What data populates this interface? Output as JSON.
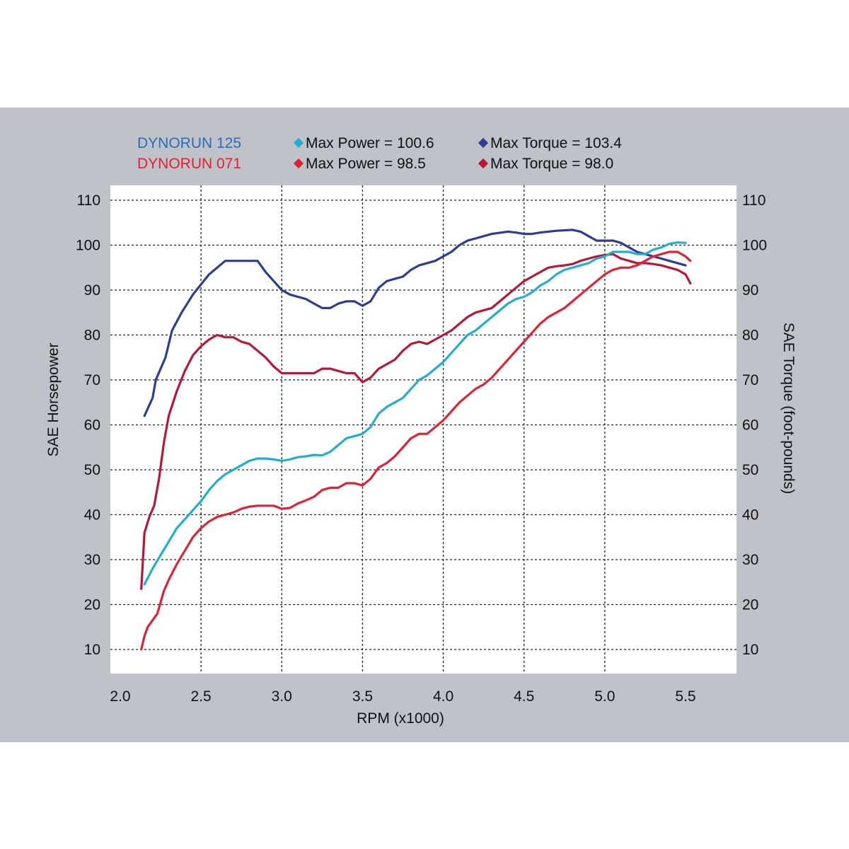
{
  "legend": {
    "runs": [
      {
        "name": "DYNORUN 125",
        "color": "#2a6db5",
        "power_label": "Max Power = 100.6",
        "torque_label": "Max Torque = 103.4",
        "power_color": "#22aed0",
        "torque_color": "#2c3d96"
      },
      {
        "name": "DYNORUN 071",
        "color": "#e32030",
        "power_label": "Max Power = 98.5",
        "torque_label": "Max Torque = 98.0",
        "power_color": "#e02236",
        "torque_color": "#b81836"
      }
    ]
  },
  "chart_data": {
    "type": "line",
    "xlabel": "RPM (x1000)",
    "ylabel_left": "SAE Horsepower",
    "ylabel_right": "SAE Torque (foot-pounds)",
    "xlim": [
      2.0,
      5.5
    ],
    "ylim": [
      10,
      110
    ],
    "x_ticks": [
      "2.0",
      "2.5",
      "3.0",
      "3.5",
      "4.0",
      "4.5",
      "5.0",
      "5.5"
    ],
    "y_ticks": [
      "10",
      "20",
      "30",
      "40",
      "50",
      "60",
      "70",
      "80",
      "90",
      "100",
      "110"
    ],
    "grid": true,
    "series": [
      {
        "name": "DYNORUN 125 Max Torque",
        "color": "#2c3d96",
        "points": [
          [
            2.15,
            62
          ],
          [
            2.2,
            66
          ],
          [
            2.22,
            70
          ],
          [
            2.28,
            75
          ],
          [
            2.32,
            81
          ],
          [
            2.38,
            85
          ],
          [
            2.45,
            89
          ],
          [
            2.55,
            93.5
          ],
          [
            2.65,
            96.5
          ],
          [
            2.75,
            96.5
          ],
          [
            2.85,
            96.5
          ],
          [
            2.9,
            94
          ],
          [
            2.95,
            92
          ],
          [
            3.0,
            90
          ],
          [
            3.05,
            89
          ],
          [
            3.1,
            88.5
          ],
          [
            3.15,
            88
          ],
          [
            3.2,
            87
          ],
          [
            3.25,
            86
          ],
          [
            3.3,
            86
          ],
          [
            3.35,
            87
          ],
          [
            3.4,
            87.5
          ],
          [
            3.45,
            87.5
          ],
          [
            3.5,
            86.5
          ],
          [
            3.55,
            87.5
          ],
          [
            3.6,
            90.5
          ],
          [
            3.65,
            92
          ],
          [
            3.7,
            92.5
          ],
          [
            3.75,
            93
          ],
          [
            3.8,
            94.5
          ],
          [
            3.85,
            95.5
          ],
          [
            3.9,
            96
          ],
          [
            3.95,
            96.5
          ],
          [
            4.0,
            97.5
          ],
          [
            4.05,
            98.5
          ],
          [
            4.1,
            100
          ],
          [
            4.15,
            101
          ],
          [
            4.2,
            101.5
          ],
          [
            4.3,
            102.5
          ],
          [
            4.4,
            103
          ],
          [
            4.45,
            102.8
          ],
          [
            4.5,
            102.5
          ],
          [
            4.55,
            102.5
          ],
          [
            4.6,
            102.8
          ],
          [
            4.7,
            103.2
          ],
          [
            4.8,
            103.4
          ],
          [
            4.85,
            103
          ],
          [
            4.9,
            102
          ],
          [
            4.95,
            101
          ],
          [
            5.0,
            101
          ],
          [
            5.05,
            101
          ],
          [
            5.1,
            100.5
          ],
          [
            5.15,
            99.5
          ],
          [
            5.2,
            98.5
          ],
          [
            5.25,
            98
          ],
          [
            5.3,
            97.5
          ],
          [
            5.35,
            97
          ],
          [
            5.4,
            96.5
          ],
          [
            5.45,
            96
          ],
          [
            5.5,
            95.5
          ]
        ]
      },
      {
        "name": "DYNORUN 071 Max Torque",
        "color": "#b81836",
        "points": [
          [
            2.13,
            23.5
          ],
          [
            2.15,
            36
          ],
          [
            2.18,
            39.5
          ],
          [
            2.21,
            42
          ],
          [
            2.24,
            48
          ],
          [
            2.27,
            56
          ],
          [
            2.3,
            62
          ],
          [
            2.35,
            67.5
          ],
          [
            2.4,
            72
          ],
          [
            2.45,
            75.5
          ],
          [
            2.5,
            77.5
          ],
          [
            2.55,
            79
          ],
          [
            2.6,
            80
          ],
          [
            2.65,
            79.5
          ],
          [
            2.7,
            79.5
          ],
          [
            2.75,
            78.5
          ],
          [
            2.8,
            78
          ],
          [
            2.85,
            76.5
          ],
          [
            2.9,
            75
          ],
          [
            2.95,
            73
          ],
          [
            3.0,
            71.5
          ],
          [
            3.05,
            71.5
          ],
          [
            3.1,
            71.5
          ],
          [
            3.15,
            71.5
          ],
          [
            3.2,
            71.5
          ],
          [
            3.25,
            72.5
          ],
          [
            3.3,
            72.5
          ],
          [
            3.35,
            72
          ],
          [
            3.4,
            71.5
          ],
          [
            3.45,
            71.5
          ],
          [
            3.5,
            69.5
          ],
          [
            3.55,
            70.5
          ],
          [
            3.6,
            72.5
          ],
          [
            3.65,
            73.5
          ],
          [
            3.7,
            74.5
          ],
          [
            3.75,
            76.5
          ],
          [
            3.8,
            78
          ],
          [
            3.85,
            78.5
          ],
          [
            3.9,
            78
          ],
          [
            3.95,
            79
          ],
          [
            4.0,
            80
          ],
          [
            4.05,
            81
          ],
          [
            4.1,
            82.5
          ],
          [
            4.15,
            84
          ],
          [
            4.2,
            85
          ],
          [
            4.25,
            85.5
          ],
          [
            4.3,
            86
          ],
          [
            4.35,
            87.5
          ],
          [
            4.4,
            89
          ],
          [
            4.45,
            90.5
          ],
          [
            4.5,
            92
          ],
          [
            4.55,
            93
          ],
          [
            4.6,
            94
          ],
          [
            4.65,
            95
          ],
          [
            4.7,
            95.3
          ],
          [
            4.75,
            95.5
          ],
          [
            4.8,
            95.8
          ],
          [
            4.85,
            96.5
          ],
          [
            4.9,
            97
          ],
          [
            4.95,
            97.5
          ],
          [
            5.0,
            97.8
          ],
          [
            5.05,
            98
          ],
          [
            5.1,
            97
          ],
          [
            5.15,
            96.5
          ],
          [
            5.2,
            96
          ],
          [
            5.25,
            96
          ],
          [
            5.3,
            95.8
          ],
          [
            5.35,
            95.5
          ],
          [
            5.4,
            95
          ],
          [
            5.45,
            94.5
          ],
          [
            5.5,
            93.5
          ],
          [
            5.53,
            91.5
          ]
        ]
      },
      {
        "name": "DYNORUN 125 Max Power",
        "color": "#22aed0",
        "points": [
          [
            2.15,
            24.5
          ],
          [
            2.2,
            28
          ],
          [
            2.25,
            31
          ],
          [
            2.3,
            34
          ],
          [
            2.35,
            37
          ],
          [
            2.4,
            39
          ],
          [
            2.45,
            41
          ],
          [
            2.5,
            43
          ],
          [
            2.55,
            45.5
          ],
          [
            2.6,
            47.5
          ],
          [
            2.65,
            49
          ],
          [
            2.7,
            50
          ],
          [
            2.75,
            51
          ],
          [
            2.8,
            52
          ],
          [
            2.85,
            52.5
          ],
          [
            2.9,
            52.5
          ],
          [
            2.95,
            52.3
          ],
          [
            3.0,
            52
          ],
          [
            3.05,
            52.3
          ],
          [
            3.1,
            52.8
          ],
          [
            3.15,
            53
          ],
          [
            3.2,
            53.3
          ],
          [
            3.25,
            53.2
          ],
          [
            3.3,
            54
          ],
          [
            3.35,
            55.5
          ],
          [
            3.4,
            57
          ],
          [
            3.45,
            57.5
          ],
          [
            3.5,
            58
          ],
          [
            3.55,
            59.5
          ],
          [
            3.6,
            62.5
          ],
          [
            3.65,
            64
          ],
          [
            3.7,
            65
          ],
          [
            3.75,
            66
          ],
          [
            3.8,
            68
          ],
          [
            3.85,
            70
          ],
          [
            3.9,
            71
          ],
          [
            3.95,
            72.5
          ],
          [
            4.0,
            74
          ],
          [
            4.05,
            76
          ],
          [
            4.1,
            78
          ],
          [
            4.15,
            80
          ],
          [
            4.2,
            81
          ],
          [
            4.25,
            82.5
          ],
          [
            4.3,
            84
          ],
          [
            4.35,
            85.5
          ],
          [
            4.4,
            87
          ],
          [
            4.45,
            88
          ],
          [
            4.5,
            88.5
          ],
          [
            4.55,
            89.5
          ],
          [
            4.6,
            91
          ],
          [
            4.65,
            92
          ],
          [
            4.7,
            93.5
          ],
          [
            4.75,
            94.5
          ],
          [
            4.8,
            95
          ],
          [
            4.85,
            95.5
          ],
          [
            4.9,
            96
          ],
          [
            4.95,
            97
          ],
          [
            5.0,
            97.5
          ],
          [
            5.05,
            98.5
          ],
          [
            5.1,
            98.5
          ],
          [
            5.15,
            98.5
          ],
          [
            5.2,
            98
          ],
          [
            5.25,
            98
          ],
          [
            5.3,
            99
          ],
          [
            5.35,
            99.5
          ],
          [
            5.4,
            100.3
          ],
          [
            5.45,
            100.6
          ],
          [
            5.5,
            100.5
          ]
        ]
      },
      {
        "name": "DYNORUN 071 Max Power",
        "color": "#e02236",
        "points": [
          [
            2.13,
            10
          ],
          [
            2.15,
            13
          ],
          [
            2.17,
            15
          ],
          [
            2.2,
            16.5
          ],
          [
            2.23,
            18
          ],
          [
            2.27,
            23
          ],
          [
            2.3,
            25.5
          ],
          [
            2.35,
            29
          ],
          [
            2.4,
            32
          ],
          [
            2.45,
            35
          ],
          [
            2.5,
            37
          ],
          [
            2.55,
            38.5
          ],
          [
            2.6,
            39.5
          ],
          [
            2.65,
            40
          ],
          [
            2.7,
            40.5
          ],
          [
            2.75,
            41.3
          ],
          [
            2.8,
            41.8
          ],
          [
            2.85,
            42
          ],
          [
            2.9,
            42
          ],
          [
            2.95,
            42
          ],
          [
            3.0,
            41.3
          ],
          [
            3.05,
            41.5
          ],
          [
            3.1,
            42.5
          ],
          [
            3.15,
            43.2
          ],
          [
            3.2,
            44
          ],
          [
            3.25,
            45.5
          ],
          [
            3.3,
            46
          ],
          [
            3.35,
            46
          ],
          [
            3.4,
            47
          ],
          [
            3.45,
            47
          ],
          [
            3.5,
            46.5
          ],
          [
            3.55,
            48
          ],
          [
            3.6,
            50.5
          ],
          [
            3.65,
            51.5
          ],
          [
            3.7,
            53
          ],
          [
            3.75,
            55
          ],
          [
            3.8,
            57
          ],
          [
            3.85,
            58
          ],
          [
            3.9,
            58
          ],
          [
            3.95,
            59.5
          ],
          [
            4.0,
            61
          ],
          [
            4.05,
            63
          ],
          [
            4.1,
            65
          ],
          [
            4.15,
            66.5
          ],
          [
            4.2,
            68
          ],
          [
            4.25,
            69
          ],
          [
            4.3,
            70.5
          ],
          [
            4.35,
            72.5
          ],
          [
            4.4,
            74.5
          ],
          [
            4.45,
            76.5
          ],
          [
            4.5,
            78.5
          ],
          [
            4.55,
            80.5
          ],
          [
            4.6,
            82.5
          ],
          [
            4.65,
            84
          ],
          [
            4.7,
            85
          ],
          [
            4.75,
            86
          ],
          [
            4.8,
            87.5
          ],
          [
            4.85,
            89
          ],
          [
            4.9,
            90.5
          ],
          [
            4.95,
            92
          ],
          [
            5.0,
            93.5
          ],
          [
            5.05,
            94.5
          ],
          [
            5.1,
            95
          ],
          [
            5.15,
            95
          ],
          [
            5.2,
            95.5
          ],
          [
            5.25,
            96.5
          ],
          [
            5.3,
            97.5
          ],
          [
            5.35,
            98
          ],
          [
            5.4,
            98.5
          ],
          [
            5.45,
            98.5
          ],
          [
            5.5,
            97.5
          ],
          [
            5.53,
            96.5
          ]
        ]
      }
    ]
  }
}
